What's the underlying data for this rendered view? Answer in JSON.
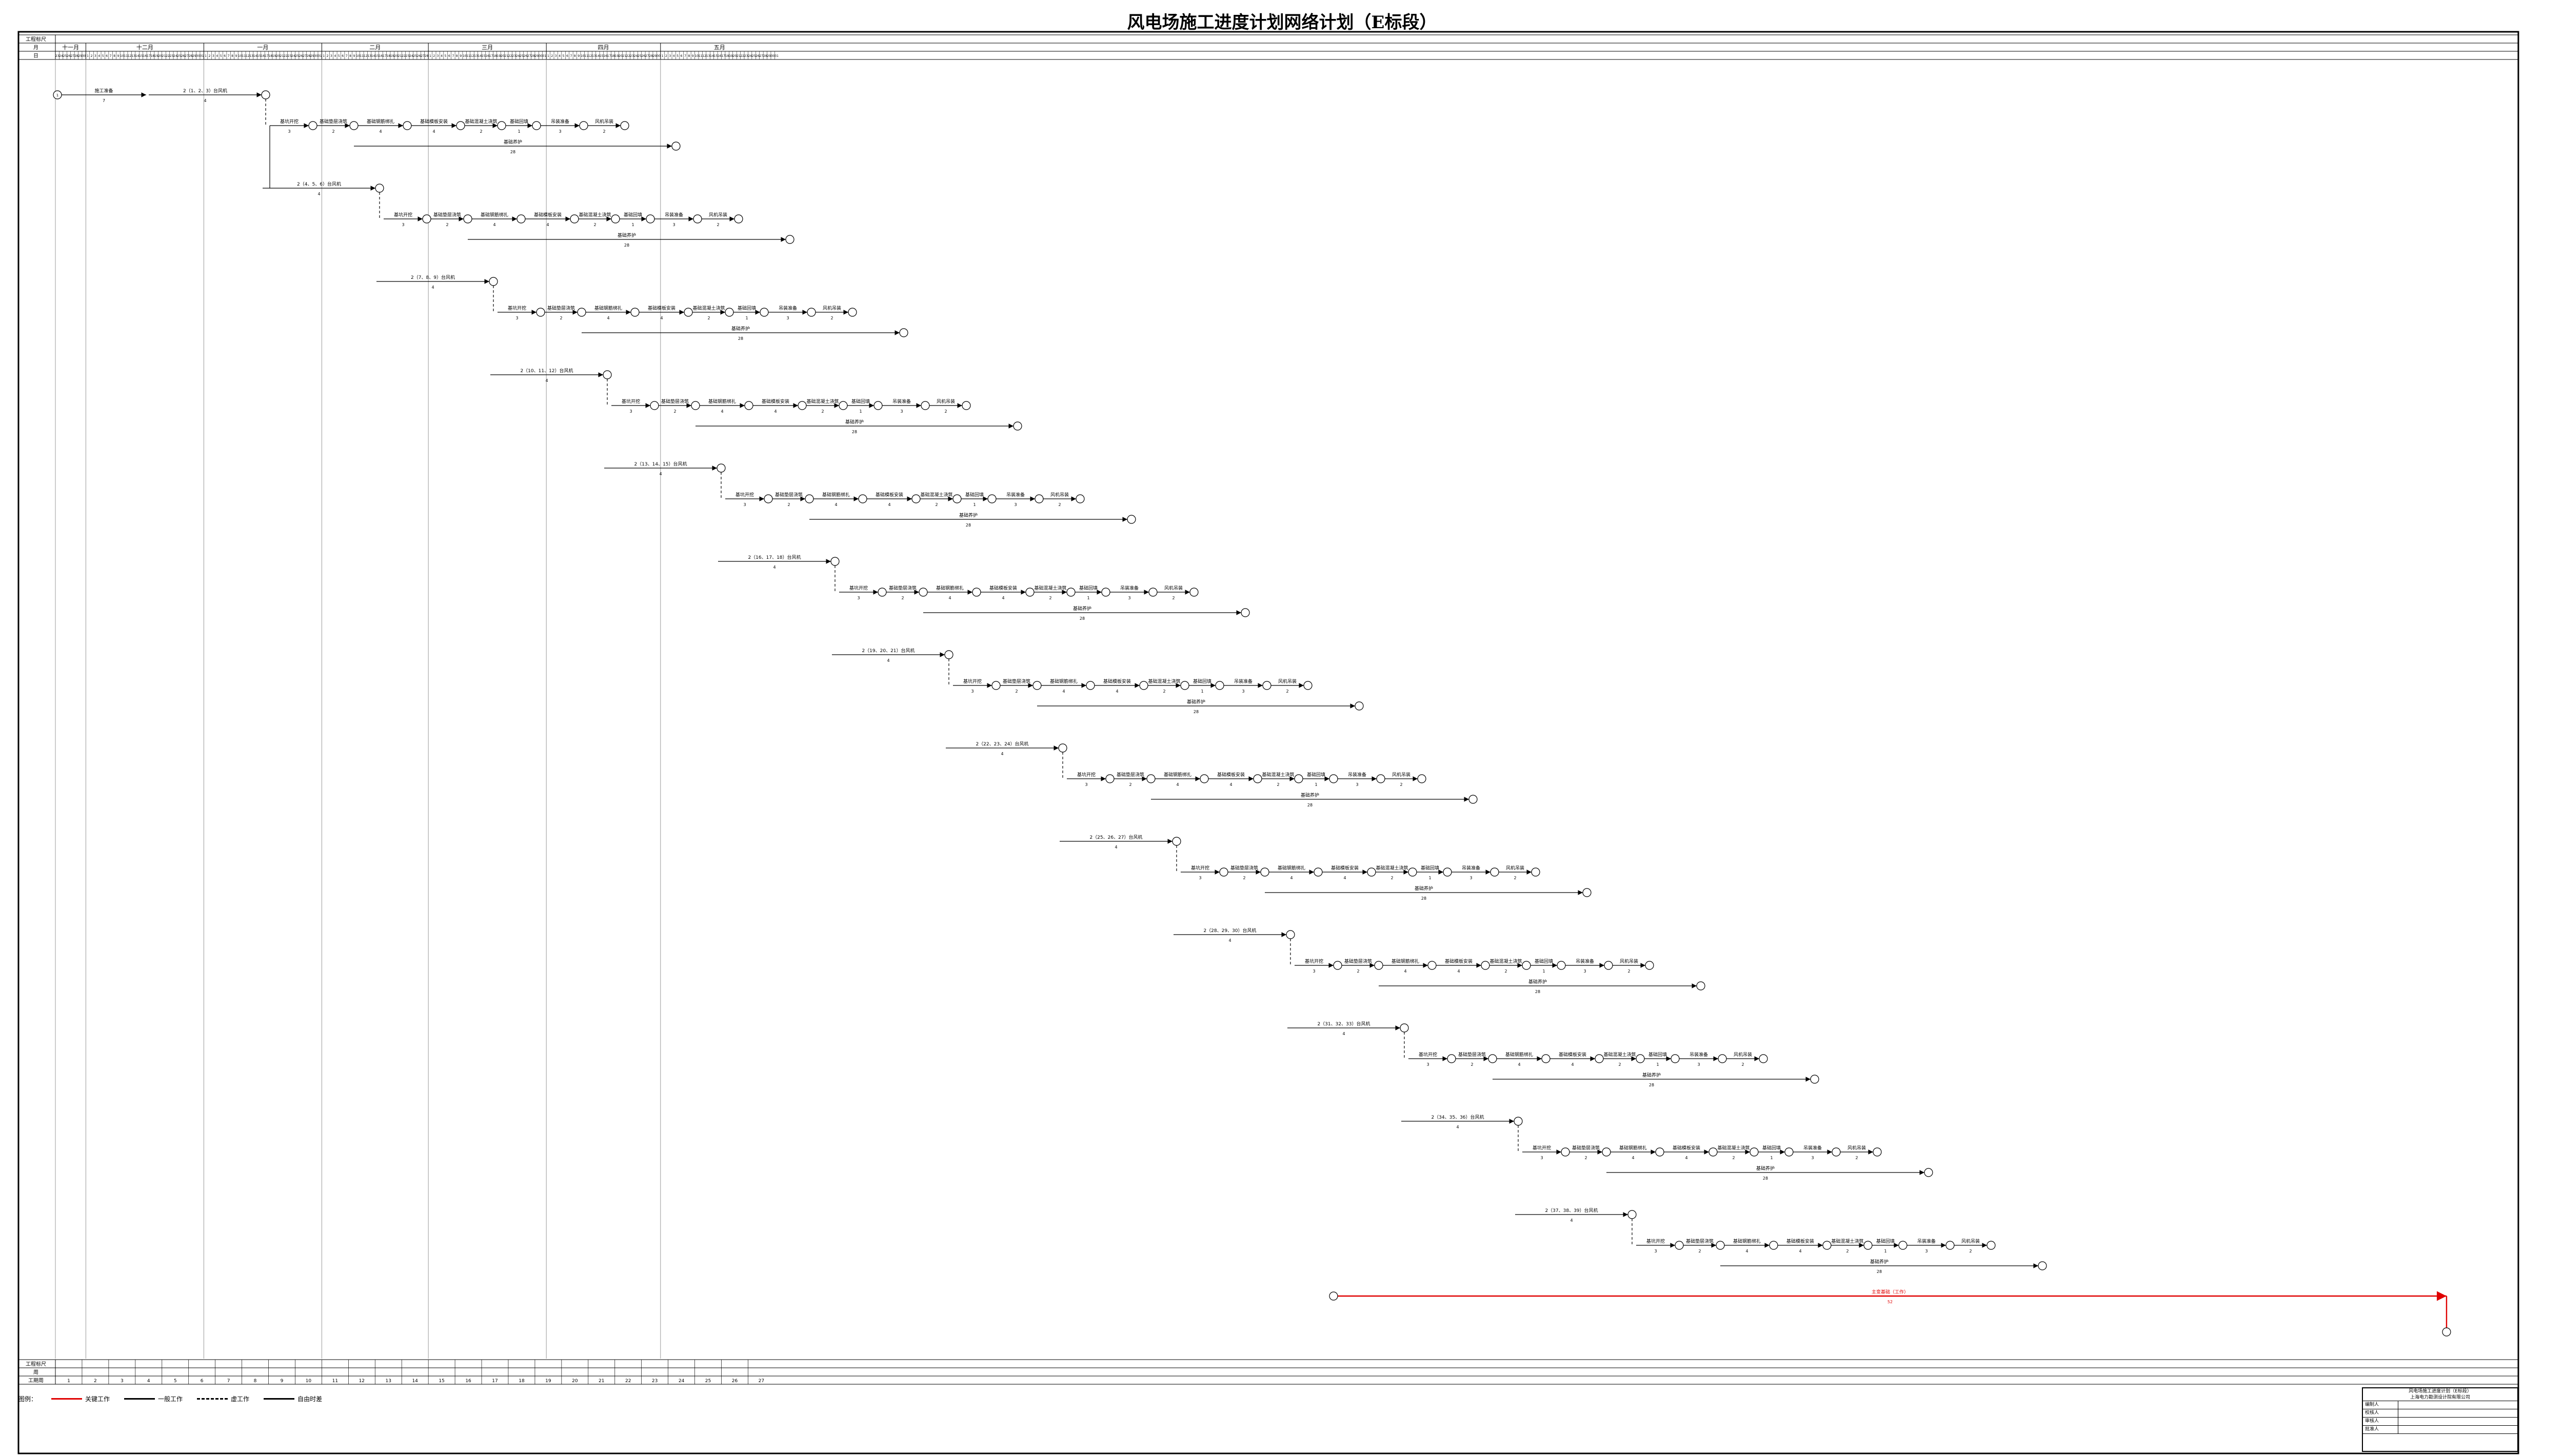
{
  "title": "风电场施工进度计划网络计划（E标段）",
  "header": {
    "row_label_year": "工程标尺",
    "row_label_month": "月",
    "row_label_day": "日",
    "months": [
      "十一月",
      "十二月",
      "一月",
      "二月",
      "三月",
      "四月",
      "五月"
    ]
  },
  "footer": {
    "row_label_scale": "工程标尺",
    "row_label_week": "周",
    "row_label_weeknum": "工期周"
  },
  "legend": {
    "label": "图例：",
    "items": [
      {
        "label": "关键工作",
        "style": "critical"
      },
      {
        "label": "一般工作",
        "style": "normal"
      },
      {
        "label": "虚工作",
        "style": "dummy"
      },
      {
        "label": "自由时差",
        "style": "float"
      }
    ]
  },
  "title_block": {
    "header": "风电场施工进度计划（E标段）",
    "company": "上海电力勘测设计院有限公司",
    "rows": [
      {
        "label": "编制人",
        "value": ""
      },
      {
        "label": "校核人",
        "value": ""
      },
      {
        "label": "审核人",
        "value": ""
      },
      {
        "label": "批准人",
        "value": ""
      }
    ]
  },
  "diagram": {
    "critical_color": "#e00000",
    "normal_color": "#000000",
    "first_activity": {
      "label": "施工准备",
      "duration": "7"
    },
    "groups": [
      {
        "label": "2（1、2、3）台风机",
        "duration": "4"
      },
      {
        "label": "2（4、5、6）台风机",
        "duration": "4"
      },
      {
        "label": "2（7、8、9）台风机",
        "duration": "4"
      },
      {
        "label": "2（10、11、12）台风机",
        "duration": "4"
      },
      {
        "label": "2（13、14、15）台风机",
        "duration": "4"
      },
      {
        "label": "2（16、17、18）台风机",
        "duration": "4"
      },
      {
        "label": "2（19、20、21）台风机",
        "duration": "4"
      },
      {
        "label": "2（22、23、24）台风机",
        "duration": "4"
      },
      {
        "label": "2（25、26、27）台风机",
        "duration": "4"
      },
      {
        "label": "2（28、29、30）台风机",
        "duration": "4"
      },
      {
        "label": "2（31、32、33）台风机",
        "duration": "4"
      },
      {
        "label": "2（34、35、36）台风机",
        "duration": "4"
      },
      {
        "label": "2（37、38、39）台风机",
        "duration": "4"
      }
    ],
    "activities": [
      {
        "label": "基坑开挖",
        "duration": "3"
      },
      {
        "label": "基础垫层浇筑",
        "duration": "2"
      },
      {
        "label": "基础钢筋绑扎",
        "duration": "4"
      },
      {
        "label": "基础模板安装",
        "duration": "4"
      },
      {
        "label": "基础混凝土浇筑",
        "duration": "2"
      },
      {
        "label": "基础回填",
        "duration": "1"
      },
      {
        "label": "吊装准备",
        "duration": "3"
      },
      {
        "label": "风机吊装",
        "duration": "2"
      }
    ],
    "maintenance": {
      "label": "基础养护",
      "duration": "28"
    },
    "critical_line": {
      "label": "主变基础（工作）",
      "duration": "52"
    }
  }
}
